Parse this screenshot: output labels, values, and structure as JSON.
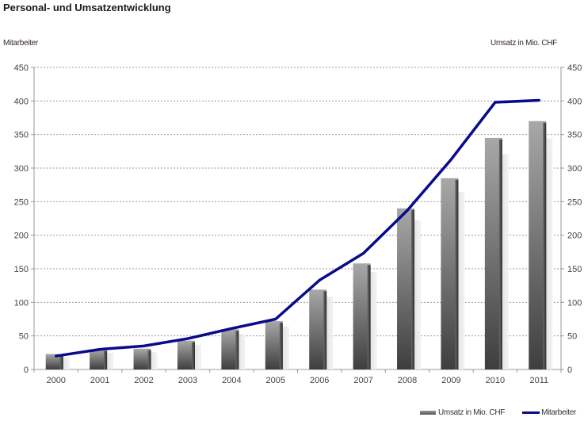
{
  "chart_data": {
    "type": "bar",
    "title": "Personal- und Umsatzentwicklung",
    "xlabel": "",
    "ylabel_left": "Mitarbeiter",
    "ylabel_right": "Umsatz in Mio. CHF",
    "ylim": [
      0,
      450
    ],
    "yticks": [
      0,
      50,
      100,
      150,
      200,
      250,
      300,
      350,
      400,
      450
    ],
    "grid": true,
    "legend_position": "bottom-right",
    "categories": [
      "2000",
      "2001",
      "2002",
      "2003",
      "2004",
      "2005",
      "2006",
      "2007",
      "2008",
      "2009",
      "2010",
      "2011"
    ],
    "series": [
      {
        "name": "Umsatz in Mio. CHF",
        "type": "bar",
        "axis": "right",
        "color": "#5a5a5a",
        "values": [
          23,
          30,
          31,
          43,
          60,
          72,
          119,
          158,
          240,
          285,
          345,
          370
        ]
      },
      {
        "name": "Mitarbeiter",
        "type": "line",
        "axis": "left",
        "color": "#0a0a8c",
        "values": [
          20,
          30,
          35,
          46,
          61,
          75,
          133,
          173,
          237,
          313,
          398,
          401
        ]
      }
    ]
  }
}
